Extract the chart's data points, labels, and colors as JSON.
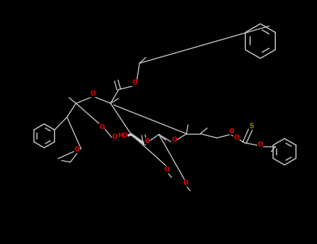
{
  "background_color": "#000000",
  "bond_color": "#c8c8c8",
  "O_color": "#ff0000",
  "S_color": "#808000",
  "figsize": [
    4.55,
    3.5
  ],
  "dpi": 100,
  "xlim": [
    0,
    10
  ],
  "ylim": [
    0,
    7.7
  ]
}
